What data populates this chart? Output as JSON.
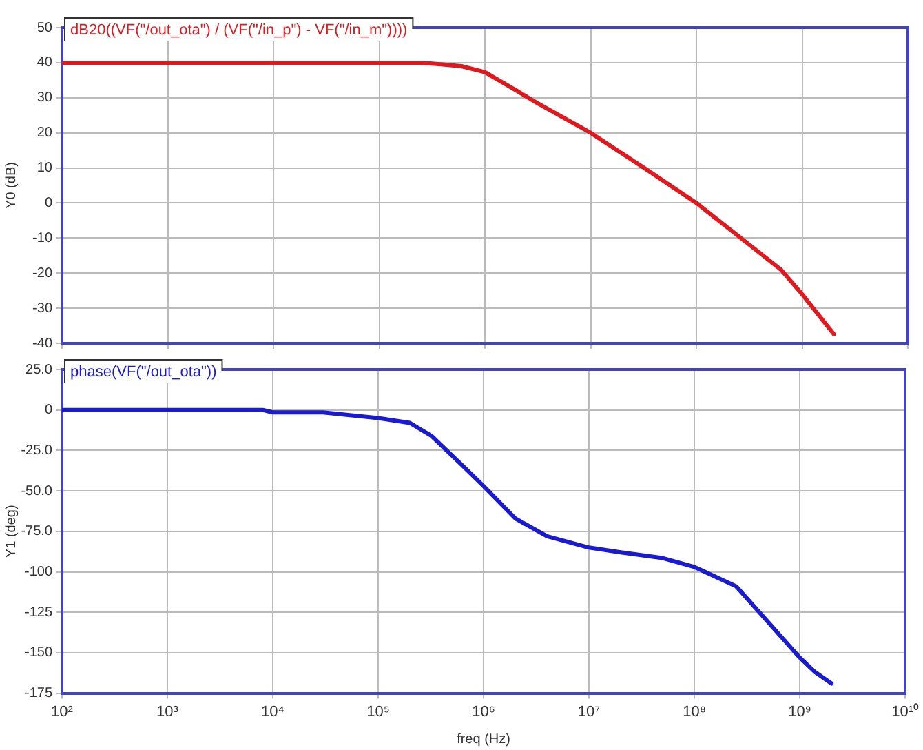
{
  "chart_data": [
    {
      "type": "line",
      "log": "x",
      "grid": true,
      "legend": "top left",
      "tick_labels": "y",
      "ylabel": "Y0 (dB)",
      "xlim": [
        100,
        10000000000
      ],
      "xticks": [
        100,
        1000,
        10000,
        100000,
        1000000,
        10000000,
        100000000,
        1000000000,
        10000000000
      ],
      "ylim": [
        -40,
        50
      ],
      "yticks": [
        -40,
        -30,
        -20,
        -10,
        0,
        10,
        20,
        30,
        40,
        50
      ],
      "series": [
        {
          "name": "dB20((VF(\"/out_ota\") / (VF(\"/in_p\") - VF(\"/in_m\"))))",
          "color": "#e0191e",
          "x": [
            100,
            1000,
            10000,
            100000,
            250000,
            400000,
            600000,
            1000000,
            2000000,
            3200000,
            10000000,
            32000000,
            100000000,
            320000000,
            630000000,
            1000000000,
            2000000000
          ],
          "values": [
            40,
            40,
            40,
            40,
            40,
            39.5,
            39,
            37.3,
            32,
            28.3,
            20,
            10,
            0,
            -12,
            -19,
            -26,
            -37.4
          ]
        }
      ]
    },
    {
      "type": "line",
      "log": "x",
      "grid": true,
      "legend": "top left",
      "xlabel": "freq (Hz)",
      "ylabel": "Y1 (deg)",
      "xlim": [
        100,
        10000000000
      ],
      "xticks": [
        {
          "value": 100,
          "label": "10²"
        },
        {
          "value": 1000,
          "label": "10³"
        },
        {
          "value": 10000,
          "label": "10⁴"
        },
        {
          "value": 100000,
          "label": "10⁵"
        },
        {
          "value": 1000000,
          "label": "10⁶"
        },
        {
          "value": 10000000,
          "label": "10⁷"
        },
        {
          "value": 100000000,
          "label": "10⁸"
        },
        {
          "value": 1000000000,
          "label": "10⁹"
        },
        {
          "value": 10000000000,
          "label": "10¹⁰"
        }
      ],
      "ylim": [
        -175,
        25
      ],
      "yticks": [
        {
          "value": -175,
          "label": "-175"
        },
        {
          "value": -150,
          "label": "-150"
        },
        {
          "value": -125,
          "label": "-125"
        },
        {
          "value": -100,
          "label": "-100"
        },
        {
          "value": -75,
          "label": "-75.0"
        },
        {
          "value": -50,
          "label": "-50.0"
        },
        {
          "value": -25,
          "label": "-25.0"
        },
        0,
        {
          "value": 25,
          "label": "25.0"
        }
      ],
      "series": [
        {
          "name": "phase(VF(\"/out_ota\"))",
          "color": "#1a1ad0",
          "x": [
            100,
            1000,
            8000,
            10000,
            30000,
            50000,
            100000,
            200000,
            320000,
            600000,
            1000000,
            2000000,
            4000000,
            10000000,
            20000000,
            50000000,
            100000000,
            250000000,
            500000000,
            1000000000,
            1400000000,
            2000000000
          ],
          "values": [
            0,
            0,
            0,
            -1.5,
            -1.5,
            -3,
            -5,
            -8,
            -16,
            -33,
            -47,
            -67,
            -78,
            -85,
            -88,
            -91.5,
            -97,
            -109,
            -131,
            -153,
            -162,
            -169
          ]
        }
      ]
    }
  ]
}
